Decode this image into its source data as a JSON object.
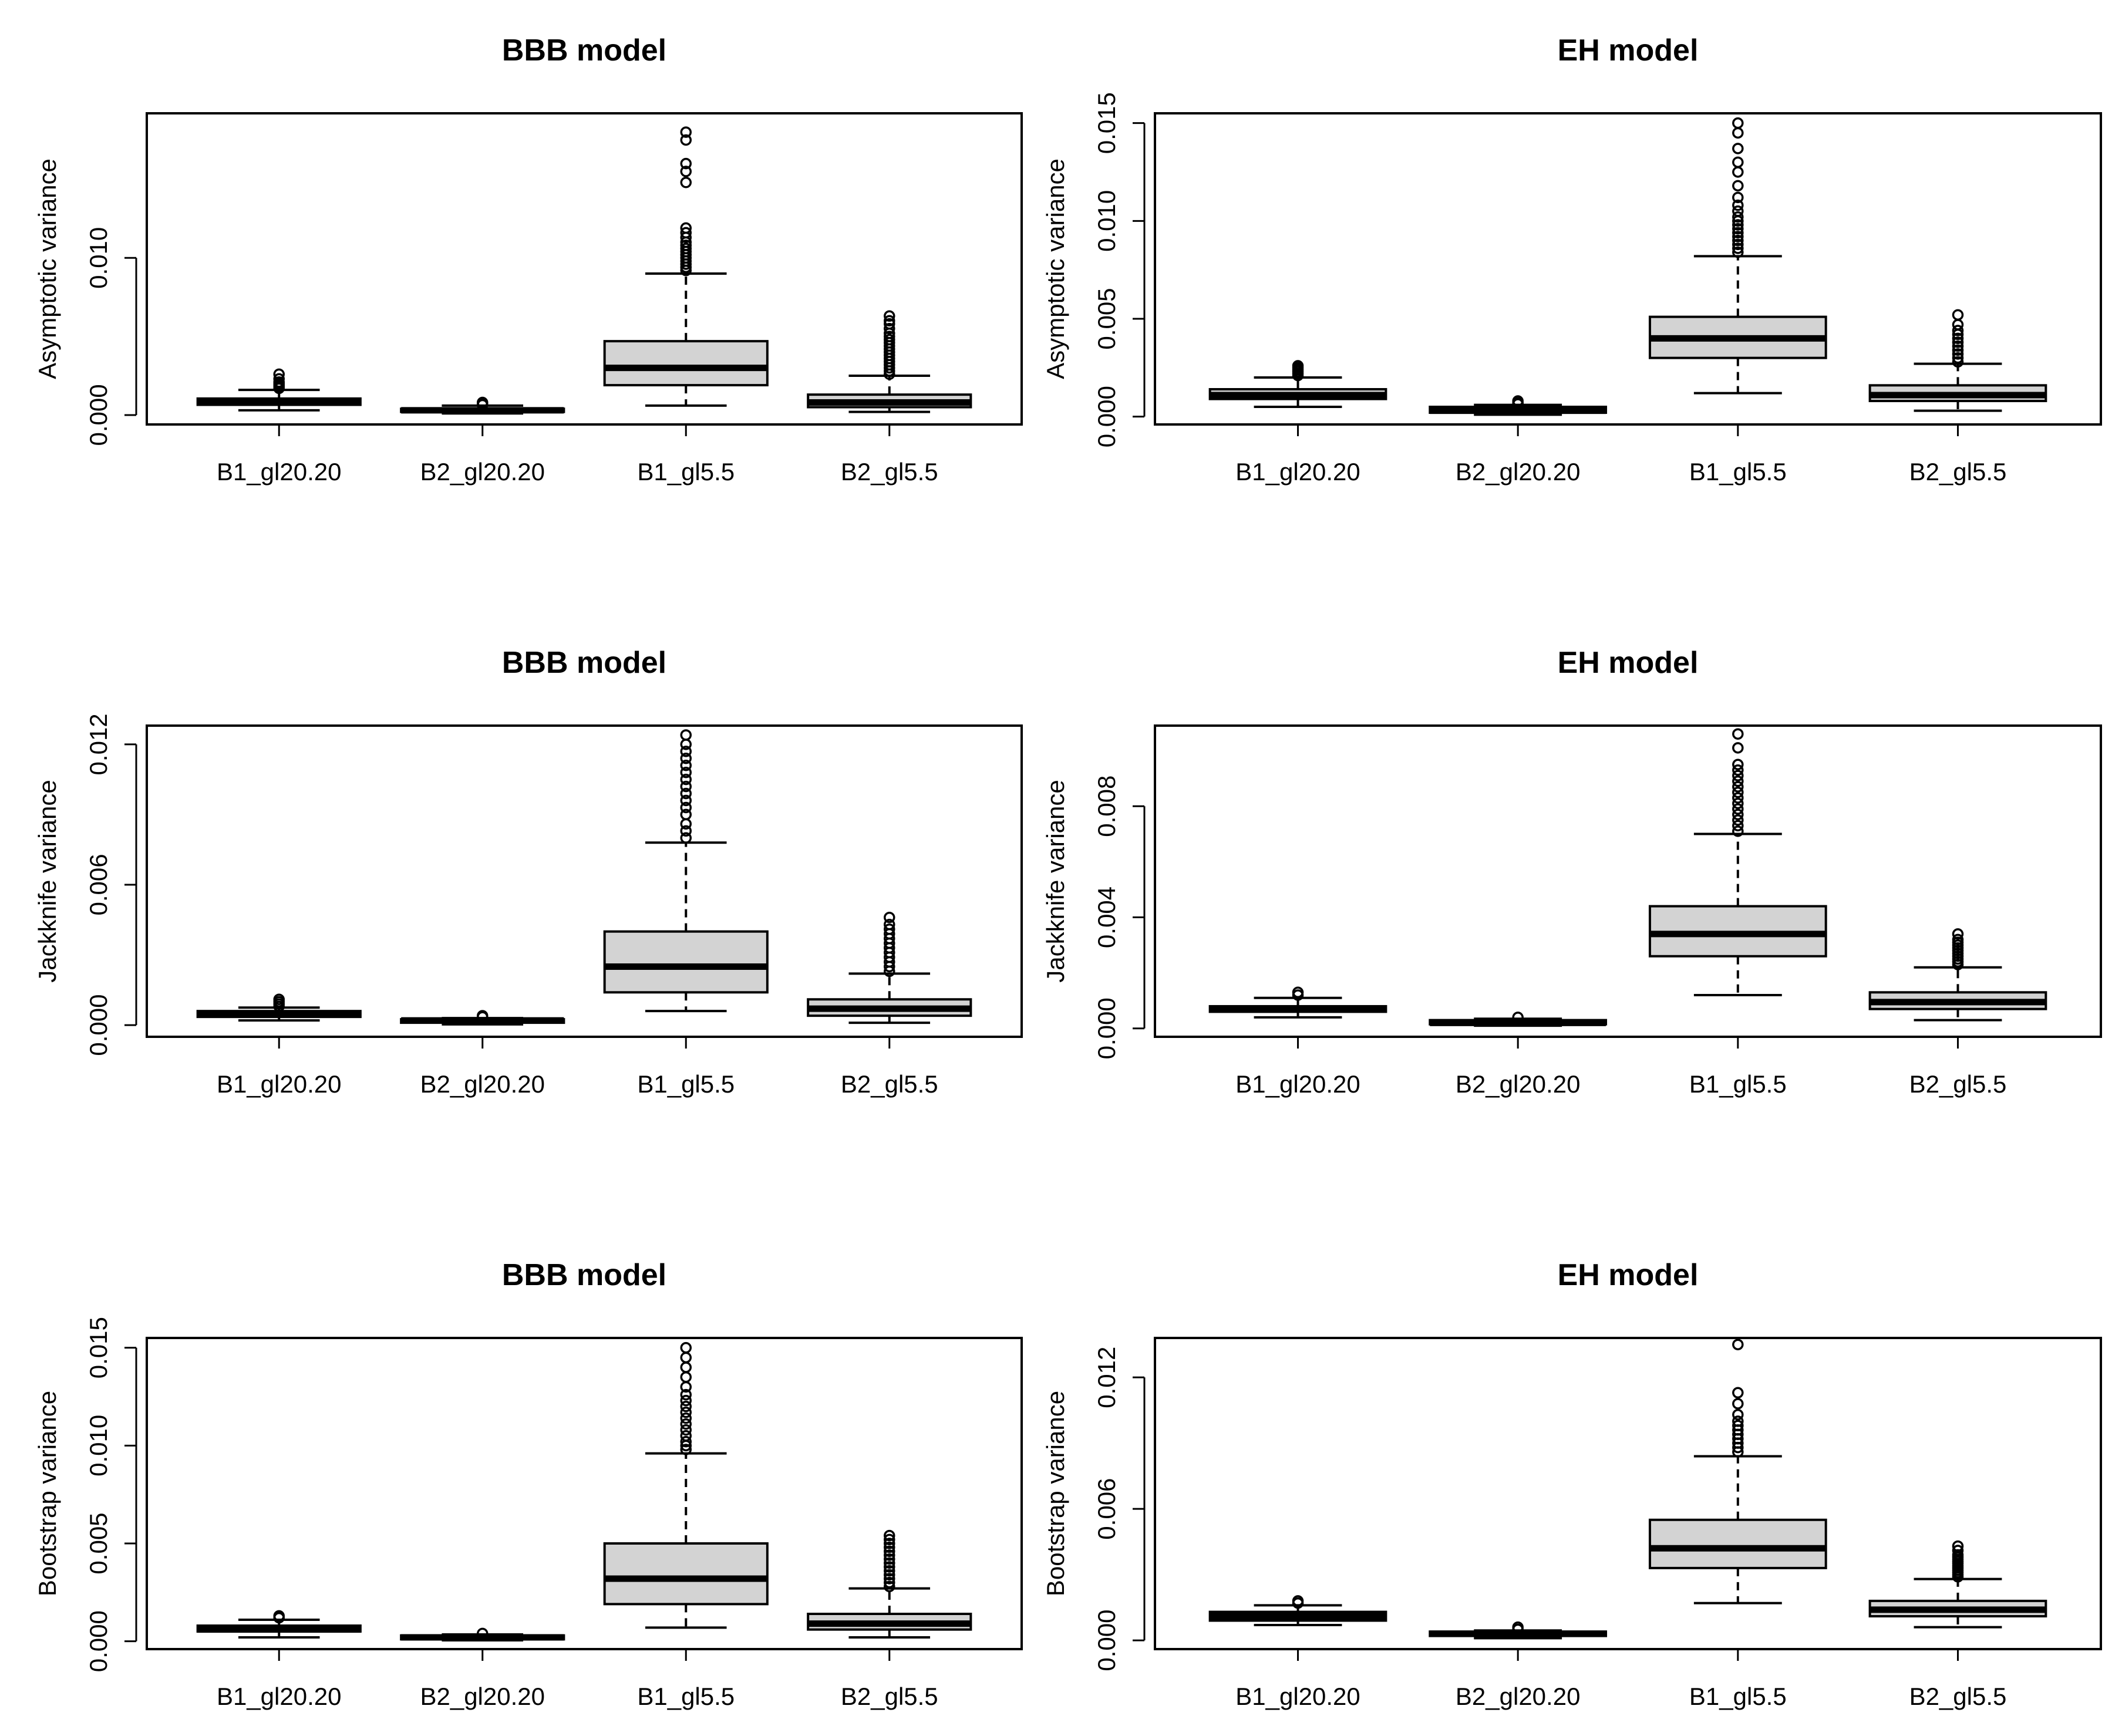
{
  "chart_data": [
    {
      "type": "box",
      "panel": "top-left",
      "title": "BBB model",
      "ylabel": "Asymptotic variance",
      "ylim": [
        -0.0006,
        0.0192
      ],
      "yticks": [
        0.0,
        0.01
      ],
      "ytick_labels": [
        "0.000",
        "0.010"
      ],
      "categories": [
        "B1_gl20.20",
        "B2_gl20.20",
        "B1_gl5.5",
        "B2_gl5.5"
      ],
      "boxes": [
        {
          "whisker_low": 0.0003,
          "q1": 0.00065,
          "median": 0.0009,
          "q3": 0.00105,
          "whisker_high": 0.0016,
          "outliers": [
            0.0017,
            0.0018,
            0.0019,
            0.002,
            0.0021,
            0.0023,
            0.0026
          ]
        },
        {
          "whisker_low": 0.0001,
          "q1": 0.0002,
          "median": 0.0003,
          "q3": 0.0004,
          "whisker_high": 0.0006,
          "outliers": [
            0.00065,
            0.0007,
            0.00075,
            0.0008
          ]
        },
        {
          "whisker_low": 0.0006,
          "q1": 0.0019,
          "median": 0.003,
          "q3": 0.0047,
          "whisker_high": 0.009,
          "outliers": [
            0.0092,
            0.0094,
            0.0096,
            0.0098,
            0.01,
            0.0102,
            0.0104,
            0.0106,
            0.0108,
            0.011,
            0.0113,
            0.0116,
            0.0119,
            0.0148,
            0.0155,
            0.016,
            0.0175,
            0.018
          ]
        },
        {
          "whisker_low": 0.0002,
          "q1": 0.0005,
          "median": 0.0008,
          "q3": 0.0013,
          "whisker_high": 0.0025,
          "outliers": [
            0.0026,
            0.0028,
            0.003,
            0.0032,
            0.0034,
            0.0036,
            0.0038,
            0.004,
            0.0042,
            0.0044,
            0.0046,
            0.0048,
            0.005,
            0.0052,
            0.0055,
            0.0058,
            0.006,
            0.0063
          ]
        }
      ]
    },
    {
      "type": "box",
      "panel": "top-right",
      "title": "EH model",
      "ylabel": "Asymptotic variance",
      "ylim": [
        -0.0004,
        0.0155
      ],
      "yticks": [
        0.0,
        0.005,
        0.01,
        0.015
      ],
      "ytick_labels": [
        "0.000",
        "0.005",
        "0.010",
        "0.015"
      ],
      "categories": [
        "B1_gl20.20",
        "B2_gl20.20",
        "B1_gl5.5",
        "B2_gl5.5"
      ],
      "boxes": [
        {
          "whisker_low": 0.0005,
          "q1": 0.0009,
          "median": 0.0011,
          "q3": 0.0014,
          "whisker_high": 0.002,
          "outliers": [
            0.0021,
            0.0022,
            0.0023,
            0.0024,
            0.0025,
            0.0026
          ]
        },
        {
          "whisker_low": 0.0001,
          "q1": 0.0002,
          "median": 0.0003,
          "q3": 0.0005,
          "whisker_high": 0.0006,
          "outliers": [
            0.00065,
            0.0007,
            0.0008
          ]
        },
        {
          "whisker_low": 0.0012,
          "q1": 0.003,
          "median": 0.004,
          "q3": 0.0051,
          "whisker_high": 0.0082,
          "outliers": [
            0.0084,
            0.0086,
            0.0088,
            0.009,
            0.0092,
            0.0094,
            0.0096,
            0.0098,
            0.01,
            0.0102,
            0.0105,
            0.0108,
            0.0112,
            0.0118,
            0.0125,
            0.013,
            0.0137,
            0.0145,
            0.015
          ]
        },
        {
          "whisker_low": 0.0003,
          "q1": 0.0008,
          "median": 0.0011,
          "q3": 0.0016,
          "whisker_high": 0.0027,
          "outliers": [
            0.0028,
            0.003,
            0.0032,
            0.0034,
            0.0036,
            0.0038,
            0.004,
            0.0042,
            0.0044,
            0.0047,
            0.0052
          ]
        }
      ]
    },
    {
      "type": "box",
      "panel": "middle-left",
      "title": "BBB model",
      "ylabel": "Jackknife variance",
      "ylim": [
        -0.0005,
        0.0128
      ],
      "yticks": [
        0.0,
        0.006,
        0.012
      ],
      "ytick_labels": [
        "0.000",
        "0.006",
        "0.012"
      ],
      "categories": [
        "B1_gl20.20",
        "B2_gl20.20",
        "B1_gl5.5",
        "B2_gl5.5"
      ],
      "boxes": [
        {
          "whisker_low": 0.0002,
          "q1": 0.00035,
          "median": 0.0005,
          "q3": 0.0006,
          "whisker_high": 0.00075,
          "outliers": [
            0.0008,
            0.0009,
            0.001,
            0.0011
          ]
        },
        {
          "whisker_low": 3e-05,
          "q1": 0.0001,
          "median": 0.0002,
          "q3": 0.00025,
          "whisker_high": 0.0003,
          "outliers": [
            0.00035,
            0.0004
          ]
        },
        {
          "whisker_low": 0.0006,
          "q1": 0.0014,
          "median": 0.0025,
          "q3": 0.004,
          "whisker_high": 0.0078,
          "outliers": [
            0.008,
            0.0083,
            0.0086,
            0.009,
            0.0093,
            0.0096,
            0.0099,
            0.0102,
            0.0105,
            0.0108,
            0.0111,
            0.0114,
            0.0117,
            0.012,
            0.0124
          ]
        },
        {
          "whisker_low": 0.0001,
          "q1": 0.0004,
          "median": 0.0007,
          "q3": 0.0011,
          "whisker_high": 0.0022,
          "outliers": [
            0.0023,
            0.0025,
            0.0027,
            0.0029,
            0.0031,
            0.0033,
            0.0035,
            0.0037,
            0.0039,
            0.0041,
            0.0043,
            0.0046
          ]
        }
      ]
    },
    {
      "type": "box",
      "panel": "middle-right",
      "title": "EH model",
      "ylabel": "Jackknife variance",
      "ylim": [
        -0.0003,
        0.0109
      ],
      "yticks": [
        0.0,
        0.004,
        0.008
      ],
      "ytick_labels": [
        "0.000",
        "0.004",
        "0.008"
      ],
      "categories": [
        "B1_gl20.20",
        "B2_gl20.20",
        "B1_gl5.5",
        "B2_gl5.5"
      ],
      "boxes": [
        {
          "whisker_low": 0.0004,
          "q1": 0.0006,
          "median": 0.0007,
          "q3": 0.0008,
          "whisker_high": 0.0011,
          "outliers": [
            0.0012,
            0.0013
          ]
        },
        {
          "whisker_low": 0.0001,
          "q1": 0.00015,
          "median": 0.0002,
          "q3": 0.0003,
          "whisker_high": 0.00035,
          "outliers": [
            0.0004
          ]
        },
        {
          "whisker_low": 0.0012,
          "q1": 0.0026,
          "median": 0.0034,
          "q3": 0.0044,
          "whisker_high": 0.007,
          "outliers": [
            0.0071,
            0.0073,
            0.0075,
            0.0077,
            0.0079,
            0.0081,
            0.0083,
            0.0085,
            0.0087,
            0.0089,
            0.0091,
            0.0093,
            0.0095,
            0.0101,
            0.0106
          ]
        },
        {
          "whisker_low": 0.0003,
          "q1": 0.0007,
          "median": 0.00095,
          "q3": 0.0013,
          "whisker_high": 0.0022,
          "outliers": [
            0.0023,
            0.0024,
            0.0025,
            0.0026,
            0.0027,
            0.0028,
            0.0029,
            0.003,
            0.0031,
            0.0032,
            0.0034
          ]
        }
      ]
    },
    {
      "type": "box",
      "panel": "bottom-left",
      "title": "BBB model",
      "ylabel": "Bootstrap variance",
      "ylim": [
        -0.0004,
        0.0155
      ],
      "yticks": [
        0.0,
        0.005,
        0.01,
        0.015
      ],
      "ytick_labels": [
        "0.000",
        "0.005",
        "0.010",
        "0.015"
      ],
      "categories": [
        "B1_gl20.20",
        "B2_gl20.20",
        "B1_gl5.5",
        "B2_gl5.5"
      ],
      "boxes": [
        {
          "whisker_low": 0.0002,
          "q1": 0.0005,
          "median": 0.0006,
          "q3": 0.0008,
          "whisker_high": 0.0011,
          "outliers": [
            0.0012,
            0.0013
          ]
        },
        {
          "whisker_low": 5e-05,
          "q1": 0.0001,
          "median": 0.0002,
          "q3": 0.0003,
          "whisker_high": 0.00035,
          "outliers": [
            0.0004
          ]
        },
        {
          "whisker_low": 0.0007,
          "q1": 0.0019,
          "median": 0.0032,
          "q3": 0.005,
          "whisker_high": 0.0096,
          "outliers": [
            0.0098,
            0.01,
            0.0102,
            0.0105,
            0.0108,
            0.0111,
            0.0114,
            0.0117,
            0.012,
            0.0123,
            0.0126,
            0.013,
            0.0135,
            0.014,
            0.0145,
            0.015
          ]
        },
        {
          "whisker_low": 0.0002,
          "q1": 0.0006,
          "median": 0.0009,
          "q3": 0.0014,
          "whisker_high": 0.0027,
          "outliers": [
            0.0028,
            0.003,
            0.0032,
            0.0034,
            0.0036,
            0.0038,
            0.004,
            0.0042,
            0.0044,
            0.0046,
            0.0048,
            0.005,
            0.0052,
            0.0054
          ]
        }
      ]
    },
    {
      "type": "box",
      "panel": "bottom-right",
      "title": "EH model",
      "ylabel": "Bootstrap variance",
      "ylim": [
        -0.0004,
        0.0138
      ],
      "yticks": [
        0.0,
        0.006,
        0.012
      ],
      "ytick_labels": [
        "0.000",
        "0.006",
        "0.012"
      ],
      "categories": [
        "B1_gl20.20",
        "B2_gl20.20",
        "B1_gl5.5",
        "B2_gl5.5"
      ],
      "boxes": [
        {
          "whisker_low": 0.0007,
          "q1": 0.0009,
          "median": 0.0011,
          "q3": 0.0013,
          "whisker_high": 0.0016,
          "outliers": [
            0.0017,
            0.0018
          ]
        },
        {
          "whisker_low": 0.0001,
          "q1": 0.0002,
          "median": 0.0003,
          "q3": 0.0004,
          "whisker_high": 0.00045,
          "outliers": [
            0.0005,
            0.0006
          ]
        },
        {
          "whisker_low": 0.0017,
          "q1": 0.0033,
          "median": 0.0042,
          "q3": 0.0055,
          "whisker_high": 0.0084,
          "outliers": [
            0.0086,
            0.0088,
            0.009,
            0.0092,
            0.0094,
            0.0096,
            0.0098,
            0.01,
            0.0103,
            0.0108,
            0.0113,
            0.0135
          ]
        },
        {
          "whisker_low": 0.0006,
          "q1": 0.0011,
          "median": 0.0014,
          "q3": 0.0018,
          "whisker_high": 0.0028,
          "outliers": [
            0.0029,
            0.003,
            0.0031,
            0.0032,
            0.0033,
            0.0034,
            0.0035,
            0.0036,
            0.0037,
            0.0038,
            0.0039,
            0.0041,
            0.0043
          ]
        }
      ]
    }
  ],
  "colors": {
    "box_fill": "#d3d3d3",
    "stroke": "#000000",
    "background": "#ffffff"
  }
}
